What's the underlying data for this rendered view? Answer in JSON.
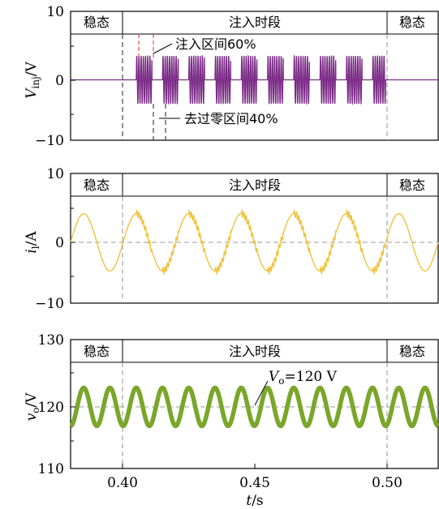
{
  "chart_data": [
    {
      "type": "line",
      "ylabel_main": "V",
      "ylabel_sub": "inj",
      "ylabel_unit": "/V",
      "ylim": [
        -10,
        10
      ],
      "yticks": [
        "10",
        "0",
        "−10"
      ],
      "xlim": [
        0.38,
        0.52
      ],
      "regions": [
        "稳态",
        "注入时段",
        "稳态"
      ],
      "region_bounds_s": [
        0.4,
        0.5
      ],
      "annotations": [
        "注入区间60%",
        "去过零区间40%"
      ],
      "series": [
        {
          "color": "#7b2a86",
          "description_values": {
            "amplitude_V": 3.5,
            "carrier_freq_hz": 1200,
            "burst_period_s": 0.01,
            "inject_fraction": 0.6,
            "start_s": 0.405,
            "end_s": 0.5
          }
        }
      ]
    },
    {
      "type": "line",
      "ylabel_main": "i",
      "ylabel_sub": "l",
      "ylabel_unit": "/A",
      "ylim": [
        -10,
        10
      ],
      "yticks": [
        "10",
        "0",
        "−10"
      ],
      "xlim": [
        0.38,
        0.52
      ],
      "regions": [
        "稳态",
        "注入时段",
        "稳态"
      ],
      "region_bounds_s": [
        0.4,
        0.5
      ],
      "series": [
        {
          "color": "#f2c13a",
          "description_values": {
            "amplitude_A": 4.2,
            "freq_hz": 50,
            "phase_s": 0.4
          }
        }
      ]
    },
    {
      "type": "line",
      "ylabel_main": "v",
      "ylabel_sub": "o",
      "ylabel_unit": "/V",
      "ylim": [
        110,
        130
      ],
      "yticks": [
        "130",
        "120",
        "110"
      ],
      "xlim": [
        0.38,
        0.52
      ],
      "xticks": [
        "0.40",
        "0.45",
        "0.50"
      ],
      "xticks_values": [
        0.4,
        0.45,
        0.5
      ],
      "xlabel_main": "t",
      "xlabel_unit": "/s",
      "regions": [
        "稳态",
        "注入时段",
        "稳态"
      ],
      "region_bounds_s": [
        0.4,
        0.5
      ],
      "annotation_main": "V",
      "annotation_sub": "o",
      "annotation_rest": "=120 V",
      "series": [
        {
          "color": "#7aa62a",
          "description_values": {
            "mean_V": 120,
            "amplitude_V": 2.8,
            "freq_hz": 100
          }
        }
      ]
    }
  ]
}
